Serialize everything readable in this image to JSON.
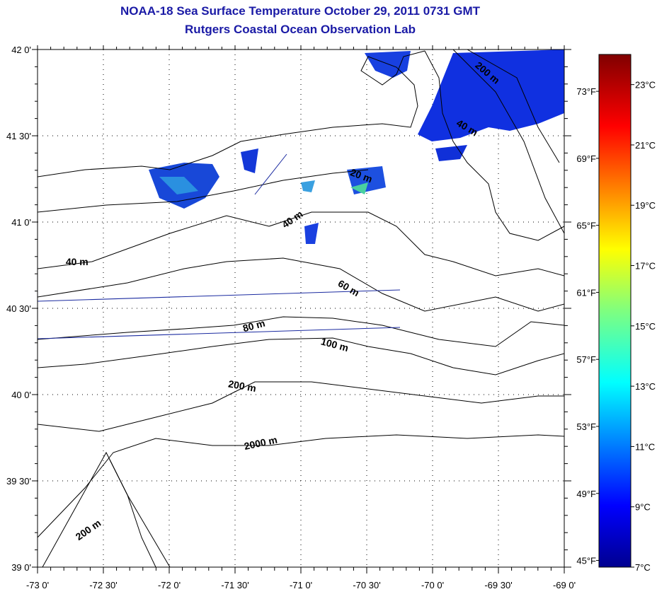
{
  "title": "NOAA-18 Sea Surface Temperature October 29, 2011 0731 GMT",
  "subtitle": "Rutgers Coastal Ocean Observation Lab",
  "map": {
    "lon_range": [
      -73,
      -69
    ],
    "lat_range": [
      39,
      42
    ],
    "lon_ticks": [
      {
        "value": -73,
        "label": "-73 0'"
      },
      {
        "value": -72.5,
        "label": "-72 30'"
      },
      {
        "value": -72,
        "label": "-72 0'"
      },
      {
        "value": -71.5,
        "label": "-71 30'"
      },
      {
        "value": -71,
        "label": "-71 0'"
      },
      {
        "value": -70.5,
        "label": "-70 30'"
      },
      {
        "value": -70,
        "label": "-70 0'"
      },
      {
        "value": -69.5,
        "label": "-69 30'"
      },
      {
        "value": -69,
        "label": "-69 0'"
      }
    ],
    "lat_ticks": [
      {
        "value": 42,
        "label": "42 0'"
      },
      {
        "value": 41.5,
        "label": "41 30'"
      },
      {
        "value": 41,
        "label": "41 0'"
      },
      {
        "value": 40.5,
        "label": "40 30'"
      },
      {
        "value": 40,
        "label": "40 0'"
      },
      {
        "value": 39.5,
        "label": "39 30'"
      },
      {
        "value": 39,
        "label": "39 0'"
      }
    ],
    "contour_labels": [
      {
        "text": "200 m",
        "lon": -69.6,
        "lat": 41.85,
        "rot": 40
      },
      {
        "text": "40 m",
        "lon": -69.75,
        "lat": 41.53,
        "rot": 30
      },
      {
        "text": "20 m",
        "lon": -70.55,
        "lat": 41.25,
        "rot": 20
      },
      {
        "text": "40 m",
        "lon": -71.05,
        "lat": 41.0,
        "rot": -35
      },
      {
        "text": "40 m",
        "lon": -72.7,
        "lat": 40.75,
        "rot": 0
      },
      {
        "text": "60 m",
        "lon": -70.65,
        "lat": 40.6,
        "rot": 30
      },
      {
        "text": "80 m",
        "lon": -71.35,
        "lat": 40.38,
        "rot": -15
      },
      {
        "text": "100 m",
        "lon": -70.75,
        "lat": 40.27,
        "rot": 15
      },
      {
        "text": "200 m",
        "lon": -71.45,
        "lat": 40.03,
        "rot": 10
      },
      {
        "text": "2000 m",
        "lon": -71.3,
        "lat": 39.7,
        "rot": -12
      },
      {
        "text": "200 m",
        "lon": -72.6,
        "lat": 39.2,
        "rot": -35
      }
    ]
  },
  "colorbar": {
    "range_c": [
      7,
      24
    ],
    "celsius": [
      {
        "v": 23,
        "label": "23°C"
      },
      {
        "v": 21,
        "label": "21°C"
      },
      {
        "v": 19,
        "label": "19°C"
      },
      {
        "v": 17,
        "label": "17°C"
      },
      {
        "v": 15,
        "label": "15°C"
      },
      {
        "v": 13,
        "label": "13°C"
      },
      {
        "v": 11,
        "label": "11°C"
      },
      {
        "v": 9,
        "label": "9°C"
      },
      {
        "v": 7,
        "label": "7°C"
      }
    ],
    "fahrenheit": [
      {
        "v": 73,
        "label": "73°F"
      },
      {
        "v": 69,
        "label": "69°F"
      },
      {
        "v": 65,
        "label": "65°F"
      },
      {
        "v": 61,
        "label": "61°F"
      },
      {
        "v": 57,
        "label": "57°F"
      },
      {
        "v": 53,
        "label": "53°F"
      },
      {
        "v": 49,
        "label": "49°F"
      },
      {
        "v": 45,
        "label": "45°F"
      }
    ]
  },
  "colors": {
    "title": "#1a1aa6",
    "track": "#1a2aa0"
  }
}
